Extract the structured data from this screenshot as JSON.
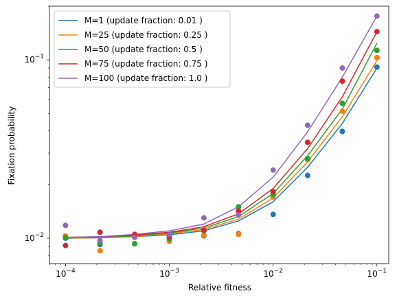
{
  "chart_data": {
    "type": "scatter",
    "xlabel": "Relative fitness",
    "ylabel": "Fixation probability",
    "xscale": "log",
    "yscale": "log",
    "xlim": [
      7e-05,
      0.13
    ],
    "ylim": [
      0.0072,
      0.2
    ],
    "grid": false,
    "legend_position": "top-left",
    "x_ticks": [
      {
        "value": 0.0001,
        "base": "10",
        "exp": "−4"
      },
      {
        "value": 0.001,
        "base": "10",
        "exp": "−3"
      },
      {
        "value": 0.01,
        "base": "10",
        "exp": "−2"
      },
      {
        "value": 0.1,
        "base": "10",
        "exp": "−1"
      }
    ],
    "y_ticks": [
      {
        "value": 0.01,
        "base": "10",
        "exp": "−2"
      },
      {
        "value": 0.1,
        "base": "10",
        "exp": "−1"
      }
    ],
    "x": [
      0.0001,
      0.000215,
      0.000464,
      0.001,
      0.00215,
      0.00464,
      0.01,
      0.0215,
      0.0464,
      0.1
    ],
    "series": [
      {
        "name": "M=1 (update fraction: 0.01 )",
        "color": "#1f77b4",
        "line": [
          0.01,
          0.01005,
          0.0102,
          0.01045,
          0.011,
          0.0125,
          0.016,
          0.025,
          0.044,
          0.09
        ],
        "points": [
          0.01,
          0.0092,
          0.0093,
          0.0103,
          0.0103,
          0.0106,
          0.0136,
          0.0225,
          0.0397,
          0.0911
        ]
      },
      {
        "name": "M=25 (update fraction: 0.25 )",
        "color": "#ff7f0e",
        "line": [
          0.01,
          0.01005,
          0.0102,
          0.0106,
          0.0112,
          0.0128,
          0.0168,
          0.0268,
          0.048,
          0.099
        ],
        "points": [
          0.0103,
          0.0085,
          0.0103,
          0.0096,
          0.0104,
          0.0105,
          0.017,
          0.0275,
          0.0515,
          0.103
        ]
      },
      {
        "name": "M=50 (update fraction: 0.5 )",
        "color": "#2ca02c",
        "line": [
          0.01,
          0.0101,
          0.0103,
          0.0107,
          0.0114,
          0.0132,
          0.0178,
          0.029,
          0.053,
          0.124
        ],
        "points": [
          0.0101,
          0.0094,
          0.0093,
          0.0099,
          0.011,
          0.015,
          0.0175,
          0.028,
          0.057,
          0.113
        ]
      },
      {
        "name": "M=75 (update fraction: 0.75 )",
        "color": "#d62728",
        "line": [
          0.0101,
          0.0102,
          0.0104,
          0.0108,
          0.0116,
          0.0137,
          0.019,
          0.0318,
          0.062,
          0.144
        ],
        "points": [
          0.0091,
          0.0108,
          0.0105,
          0.0102,
          0.0111,
          0.0142,
          0.0182,
          0.0345,
          0.076,
          0.144
        ]
      },
      {
        "name": "M=100 (update fraction: 1.0 )",
        "color": "#9467bd",
        "line": [
          0.0101,
          0.0102,
          0.0105,
          0.011,
          0.012,
          0.015,
          0.022,
          0.0395,
          0.08,
          0.176
        ],
        "points": [
          0.0118,
          0.0097,
          0.0101,
          0.0105,
          0.013,
          0.0135,
          0.0241,
          0.043,
          0.09,
          0.176
        ]
      }
    ]
  }
}
